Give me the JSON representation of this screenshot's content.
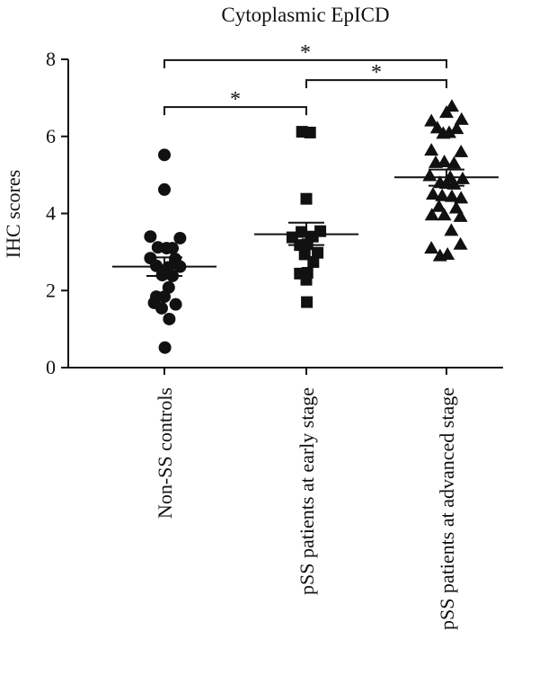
{
  "chart_data": {
    "type": "scatter",
    "title": "Cytoplasmic EpICD",
    "ylabel": "IHC scores",
    "xlabel": "",
    "ylim": [
      0,
      8
    ],
    "yticks": [
      0,
      2,
      4,
      6,
      8
    ],
    "categories": [
      "Non-SS controls",
      "pSS patients at early stage",
      "pSS patients at advanced stage"
    ],
    "series": [
      {
        "marker": "circle",
        "color": "#111111",
        "mean": 2.62,
        "sem_range": [
          2.38,
          2.86
        ],
        "points": [
          {
            "dx": 0.0,
            "y": 5.52
          },
          {
            "dx": 0.0,
            "y": 4.62
          },
          {
            "dx": -0.26,
            "y": 3.4
          },
          {
            "dx": 0.29,
            "y": 3.36
          },
          {
            "dx": -0.12,
            "y": 3.12
          },
          {
            "dx": 0.04,
            "y": 3.1
          },
          {
            "dx": 0.15,
            "y": 3.1
          },
          {
            "dx": -0.26,
            "y": 2.84
          },
          {
            "dx": 0.2,
            "y": 2.82
          },
          {
            "dx": -0.15,
            "y": 2.64
          },
          {
            "dx": 0.07,
            "y": 2.6
          },
          {
            "dx": 0.29,
            "y": 2.62
          },
          {
            "dx": -0.04,
            "y": 2.4
          },
          {
            "dx": 0.15,
            "y": 2.38
          },
          {
            "dx": 0.08,
            "y": 2.08
          },
          {
            "dx": -0.15,
            "y": 1.84
          },
          {
            "dx": 0.0,
            "y": 1.84
          },
          {
            "dx": -0.19,
            "y": 1.68
          },
          {
            "dx": 0.21,
            "y": 1.64
          },
          {
            "dx": -0.05,
            "y": 1.54
          },
          {
            "dx": 0.09,
            "y": 1.26
          },
          {
            "dx": 0.01,
            "y": 0.52
          }
        ]
      },
      {
        "marker": "square",
        "color": "#111111",
        "mean": 3.46,
        "sem_range": [
          3.18,
          3.76
        ],
        "points": [
          {
            "dx": -0.08,
            "y": 6.12
          },
          {
            "dx": 0.07,
            "y": 6.1
          },
          {
            "dx": 0.0,
            "y": 4.38
          },
          {
            "dx": -0.26,
            "y": 3.38
          },
          {
            "dx": -0.09,
            "y": 3.52
          },
          {
            "dx": 0.12,
            "y": 3.4
          },
          {
            "dx": 0.26,
            "y": 3.54
          },
          {
            "dx": -0.12,
            "y": 3.18
          },
          {
            "dx": 0.02,
            "y": 3.2
          },
          {
            "dx": -0.03,
            "y": 2.94
          },
          {
            "dx": 0.21,
            "y": 2.98
          },
          {
            "dx": 0.13,
            "y": 2.74
          },
          {
            "dx": -0.12,
            "y": 2.44
          },
          {
            "dx": 0.02,
            "y": 2.46
          },
          {
            "dx": 0.0,
            "y": 2.28
          },
          {
            "dx": 0.01,
            "y": 1.7
          }
        ]
      },
      {
        "marker": "triangle",
        "color": "#111111",
        "mean": 4.94,
        "sem_range": [
          4.72,
          5.14
        ],
        "points": [
          {
            "dx": 0.1,
            "y": 6.78
          },
          {
            "dx": 0.0,
            "y": 6.62
          },
          {
            "dx": -0.28,
            "y": 6.4
          },
          {
            "dx": 0.28,
            "y": 6.44
          },
          {
            "dx": -0.17,
            "y": 6.22
          },
          {
            "dx": 0.19,
            "y": 6.2
          },
          {
            "dx": -0.06,
            "y": 6.08
          },
          {
            "dx": 0.05,
            "y": 6.1
          },
          {
            "dx": -0.28,
            "y": 5.64
          },
          {
            "dx": 0.27,
            "y": 5.6
          },
          {
            "dx": -0.2,
            "y": 5.32
          },
          {
            "dx": -0.04,
            "y": 5.34
          },
          {
            "dx": 0.14,
            "y": 5.3
          },
          {
            "dx": -0.31,
            "y": 4.98
          },
          {
            "dx": 0.07,
            "y": 4.94
          },
          {
            "dx": 0.3,
            "y": 4.9
          },
          {
            "dx": -0.12,
            "y": 4.8
          },
          {
            "dx": 0.0,
            "y": 4.78
          },
          {
            "dx": 0.14,
            "y": 4.76
          },
          {
            "dx": -0.25,
            "y": 4.5
          },
          {
            "dx": -0.08,
            "y": 4.46
          },
          {
            "dx": 0.1,
            "y": 4.44
          },
          {
            "dx": 0.27,
            "y": 4.4
          },
          {
            "dx": -0.14,
            "y": 4.18
          },
          {
            "dx": 0.18,
            "y": 4.14
          },
          {
            "dx": -0.27,
            "y": 3.96
          },
          {
            "dx": -0.04,
            "y": 3.96
          },
          {
            "dx": 0.26,
            "y": 3.92
          },
          {
            "dx": 0.09,
            "y": 3.56
          },
          {
            "dx": -0.28,
            "y": 3.1
          },
          {
            "dx": 0.26,
            "y": 3.2
          },
          {
            "dx": -0.12,
            "y": 2.9
          },
          {
            "dx": 0.02,
            "y": 2.94
          }
        ]
      }
    ],
    "significance": [
      {
        "from": 0,
        "to": 2,
        "y": 7.98,
        "label": "*"
      },
      {
        "from": 0,
        "to": 1,
        "y": 6.76,
        "label": "*"
      },
      {
        "from": 1,
        "to": 2,
        "y": 7.46,
        "label": "*"
      }
    ],
    "grid": false,
    "legend": "none"
  }
}
